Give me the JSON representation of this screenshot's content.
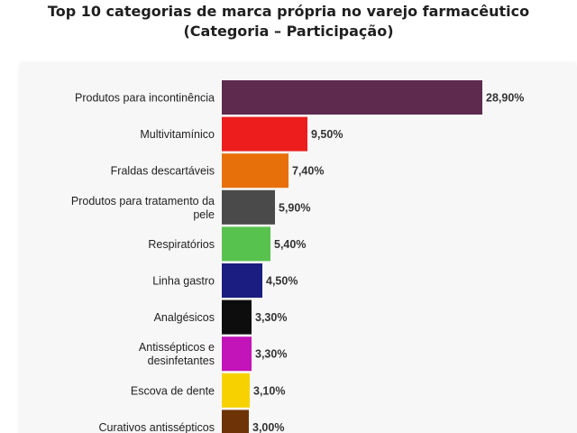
{
  "chart_data": {
    "type": "bar",
    "orientation": "horizontal",
    "title_line1": "Top 10 categorias de marca própria no varejo farmacêutico",
    "title_line2": "(Categoria – Participação)",
    "xlabel": "",
    "ylabel": "",
    "grid": false,
    "xlim": [
      0,
      28.9
    ],
    "categories": [
      [
        "Produtos para incontinência"
      ],
      [
        "Multivitamínico"
      ],
      [
        "Fraldas descartáveis"
      ],
      [
        "Produtos para tratamento da",
        "pele"
      ],
      [
        "Respiratórios"
      ],
      [
        "Linha gastro"
      ],
      [
        "Analgésicos"
      ],
      [
        "Antissépticos e",
        "desinfetantes"
      ],
      [
        "Escova de dente"
      ],
      [
        "Curativos antissépticos"
      ]
    ],
    "values": [
      28.9,
      9.5,
      7.4,
      5.9,
      5.4,
      4.5,
      3.3,
      3.3,
      3.1,
      3.0
    ],
    "value_labels": [
      "28,90%",
      "9,50%",
      "7,40%",
      "5,90%",
      "5,40%",
      "4,50%",
      "3,30%",
      "3,30%",
      "3,10%",
      "3,00%"
    ],
    "colors": [
      "#5e2a4e",
      "#ee1d1d",
      "#e8700a",
      "#4a4a4a",
      "#58c24f",
      "#1b1d80",
      "#0d0d0d",
      "#c214b8",
      "#f7d200",
      "#6e3408"
    ]
  }
}
